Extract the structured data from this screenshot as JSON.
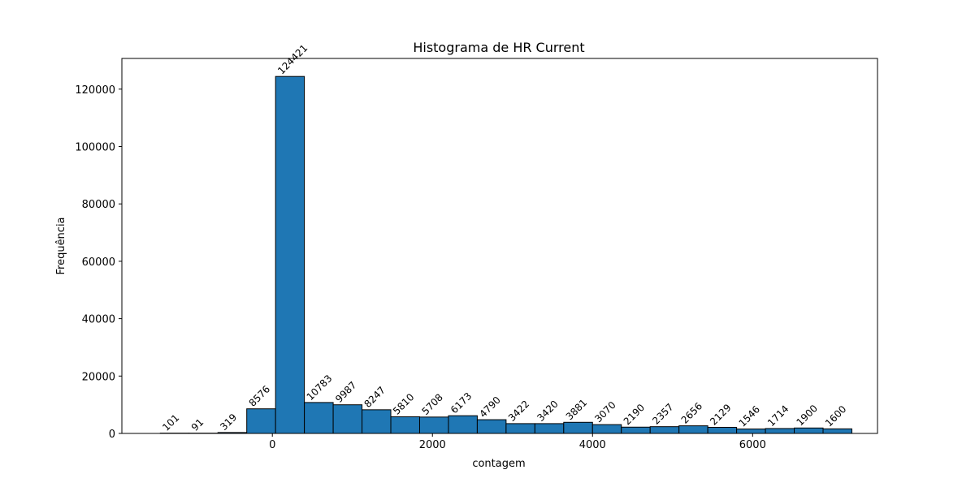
{
  "chart_data": {
    "type": "bar",
    "title": "Histograma de HR Current",
    "xlabel": "contagem",
    "ylabel": "Frequência",
    "bin_start": -1400,
    "bin_width": 360,
    "values": [
      101,
      91,
      319,
      8576,
      124421,
      10783,
      9987,
      8247,
      5810,
      5708,
      6173,
      4790,
      3422,
      3420,
      3881,
      3070,
      2190,
      2357,
      2656,
      2129,
      1546,
      1714,
      1900,
      1600
    ],
    "value_labels": [
      "101",
      "91",
      "319",
      "8576",
      "124421",
      "10783",
      "9987",
      "8247",
      "5810",
      "5708",
      "6173",
      "4790",
      "3422",
      "3420",
      "3881",
      "3070",
      "2190",
      "2357",
      "2656",
      "2129",
      "1546",
      "1714",
      "1900",
      "1600"
    ],
    "xlim": [
      -1880,
      7560
    ],
    "ylim": [
      0,
      130700
    ],
    "x_ticks": [
      0,
      2000,
      4000,
      6000
    ],
    "x_tick_labels": [
      "0",
      "2000",
      "4000",
      "6000"
    ],
    "y_ticks": [
      0,
      20000,
      40000,
      60000,
      80000,
      100000,
      120000
    ],
    "y_tick_labels": [
      "0",
      "20000",
      "40000",
      "60000",
      "80000",
      "100000",
      "120000"
    ],
    "bar_color": "#1f77b4",
    "edge_color": "#000000",
    "grid": false,
    "legend": "none"
  }
}
